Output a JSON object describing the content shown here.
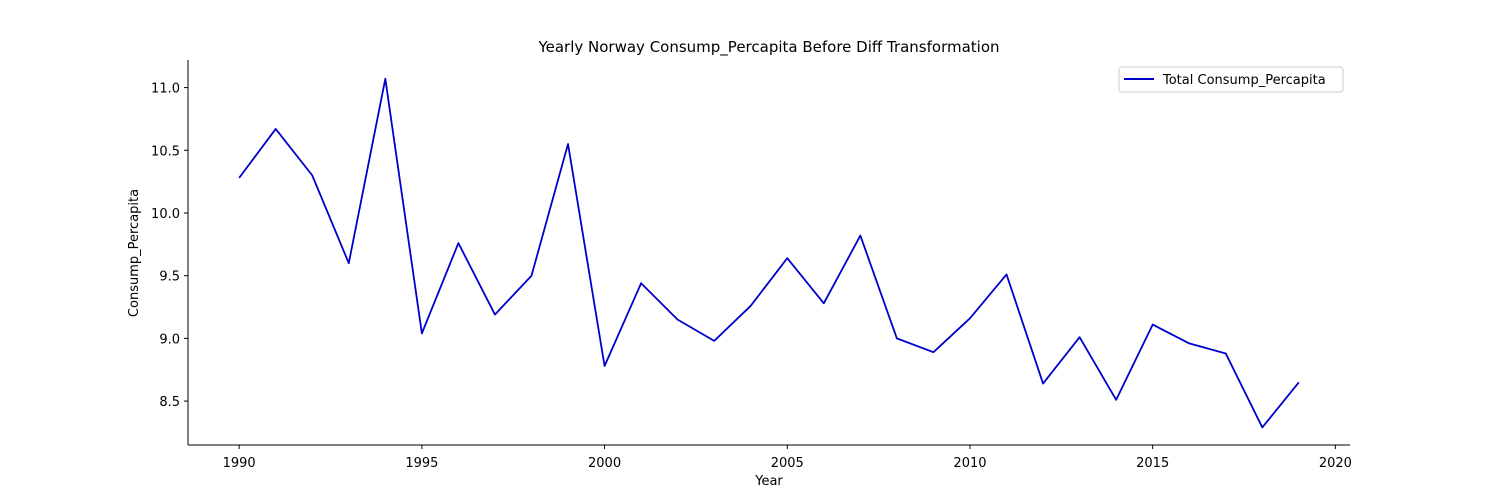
{
  "chart_data": {
    "type": "line",
    "title": "Yearly Norway Consump_Percapita Before Diff Transformation",
    "xlabel": "Year",
    "ylabel": "Consump_Percapita",
    "xlim": [
      1988.6,
      2020.4
    ],
    "ylim": [
      8.15,
      11.22
    ],
    "x_ticks": [
      1990,
      1995,
      2000,
      2005,
      2010,
      2015,
      2020
    ],
    "y_ticks": [
      8.5,
      9.0,
      9.5,
      10.0,
      10.5,
      11.0
    ],
    "x_tick_labels": [
      "1990",
      "1995",
      "2000",
      "2005",
      "2010",
      "2015",
      "2020"
    ],
    "y_tick_labels": [
      "8.5",
      "9.0",
      "9.5",
      "10.0",
      "10.5",
      "11.0"
    ],
    "grid": false,
    "legend_position": "top-right",
    "series": [
      {
        "name": "Total Consump_Percapita",
        "color": "#0000cc",
        "x": [
          1990,
          1991,
          1992,
          1993,
          1994,
          1995,
          1996,
          1997,
          1998,
          1999,
          2000,
          2001,
          2002,
          2003,
          2004,
          2005,
          2006,
          2007,
          2008,
          2009,
          2010,
          2011,
          2012,
          2013,
          2014,
          2015,
          2016,
          2017,
          2018,
          2019
        ],
        "y": [
          10.28,
          10.67,
          10.3,
          9.6,
          11.07,
          9.04,
          9.76,
          9.19,
          9.5,
          10.55,
          8.78,
          9.44,
          9.15,
          8.98,
          9.26,
          9.64,
          9.28,
          9.82,
          9.0,
          8.89,
          9.16,
          9.51,
          8.64,
          9.01,
          8.51,
          9.11,
          8.96,
          8.88,
          8.29,
          8.65
        ]
      }
    ]
  }
}
